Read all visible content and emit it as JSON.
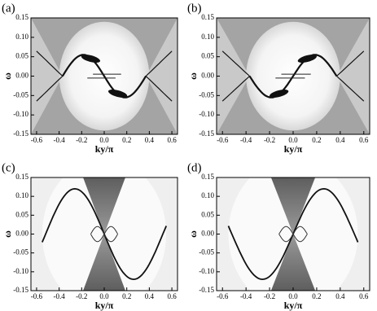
{
  "chart_data": [
    {
      "type": "heatmap",
      "label": "(a)",
      "x_label": "ky/π",
      "y_label": "ω",
      "xlim": [
        -0.65,
        0.65
      ],
      "ylim": [
        -0.15,
        0.15
      ],
      "xticks": [
        -0.6,
        -0.4,
        -0.2,
        {
          "value": 0,
          "label": "0.0"
        },
        0.2,
        0.4,
        0.6
      ],
      "yticks": [
        0.15,
        {
          "value": 0.1,
          "label": "0.10"
        },
        0.05,
        {
          "value": 0,
          "label": "0.00"
        },
        -0.05,
        {
          "value": -0.1,
          "label": "-0.10"
        },
        -0.15
      ]
    },
    {
      "type": "heatmap",
      "label": "(b)",
      "x_label": "ky/π",
      "y_label": "ω",
      "xlim": [
        -0.65,
        0.65
      ],
      "ylim": [
        -0.15,
        0.15
      ],
      "xticks": [
        -0.6,
        -0.4,
        -0.2,
        {
          "value": 0,
          "label": "0.0"
        },
        0.2,
        0.4,
        0.6
      ],
      "yticks": [
        0.15,
        {
          "value": 0.1,
          "label": "0.10"
        },
        0.05,
        {
          "value": 0,
          "label": "0.00"
        },
        -0.05,
        {
          "value": -0.1,
          "label": "-0.10"
        },
        -0.15
      ]
    },
    {
      "type": "heatmap",
      "label": "(c)",
      "x_label": "ky/π",
      "y_label": "ω",
      "xlim": [
        -0.65,
        0.65
      ],
      "ylim": [
        -0.15,
        0.15
      ],
      "xticks": [
        -0.6,
        -0.4,
        -0.2,
        {
          "value": 0,
          "label": "0.0"
        },
        0.2,
        0.4,
        0.6
      ],
      "yticks": [
        0.15,
        {
          "value": 0.1,
          "label": "0.10"
        },
        0.05,
        {
          "value": 0,
          "label": "0.00"
        },
        -0.05,
        {
          "value": -0.1,
          "label": "-0.10"
        },
        -0.15
      ]
    },
    {
      "type": "heatmap",
      "label": "(d)",
      "x_label": "ky/π",
      "y_label": "ω",
      "xlim": [
        -0.65,
        0.65
      ],
      "ylim": [
        -0.15,
        0.15
      ],
      "xticks": [
        -0.6,
        -0.4,
        -0.2,
        {
          "value": 0,
          "label": "0.0"
        },
        0.2,
        0.4,
        0.6
      ],
      "yticks": [
        0.15,
        {
          "value": 0.1,
          "label": "0.10"
        },
        0.05,
        {
          "value": 0,
          "label": "0.00"
        },
        -0.05,
        {
          "value": -0.1,
          "label": "-0.10"
        },
        -0.15
      ]
    }
  ]
}
